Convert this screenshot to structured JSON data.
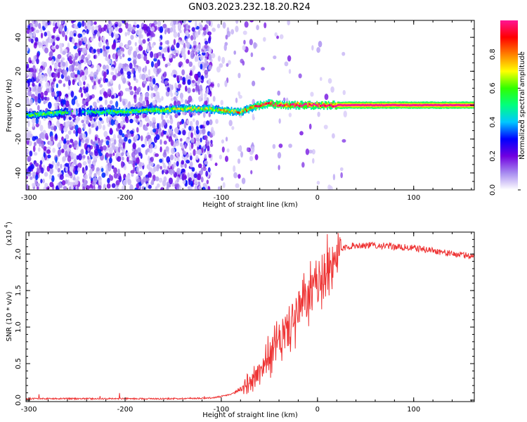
{
  "figure": {
    "title": "GN03.2023.232.18.20.R24"
  },
  "chart_data": [
    {
      "type": "heatmap",
      "title": "",
      "xlabel": "Height of straight line (km)",
      "ylabel": "Frequency (Hz)",
      "xlim": [
        -303,
        163
      ],
      "ylim": [
        -50,
        50
      ],
      "xticks": [
        -300,
        -200,
        -100,
        0,
        100
      ],
      "yticks": [
        -40,
        -20,
        0,
        20,
        40
      ],
      "colorbar": {
        "label": "Normalized spectral amplitude",
        "range": [
          0,
          1
        ],
        "ticks": [
          0.0,
          0.2,
          0.4,
          0.6,
          0.8
        ],
        "colors": [
          "#ffffff",
          "#a78bf0",
          "#7000e0",
          "#0000ff",
          "#00c8ff",
          "#00ff7f",
          "#30ff00",
          "#ffff00",
          "#ff8000",
          "#ff0000",
          "#ff1493"
        ]
      },
      "ridge": {
        "description_x": [
          -303,
          -280,
          -260,
          -240,
          -220,
          -200,
          -180,
          -160,
          -140,
          -120,
          -100,
          -80,
          -70,
          -60,
          -50,
          -40,
          -20,
          0,
          20,
          50,
          100,
          163
        ],
        "frequency": [
          -6,
          -5,
          -4,
          -4,
          -4,
          -4,
          -3,
          -3,
          -2,
          -2,
          -3,
          -4,
          -2,
          0,
          1,
          0,
          0,
          0,
          0,
          0,
          0,
          0
        ],
        "amplitude": [
          0.35,
          0.4,
          0.35,
          0.3,
          0.35,
          0.4,
          0.4,
          0.45,
          0.5,
          0.5,
          0.55,
          0.6,
          0.6,
          0.7,
          0.8,
          0.85,
          0.9,
          0.9,
          0.95,
          0.95,
          0.95,
          0.95
        ]
      },
      "scatter_density": {
        "x_ranges": [
          [
            -303,
            -110,
            0.9
          ],
          [
            -110,
            -60,
            0.15
          ],
          [
            -60,
            30,
            0.05
          ]
        ]
      }
    },
    {
      "type": "line",
      "title": "",
      "xlabel": "Height of straight line (km)",
      "ylabel": "SNR (10 * v/v)",
      "y_multiplier": "(x10",
      "y_multiplier_exp": "4",
      "xlim": [
        -303,
        163
      ],
      "ylim": [
        -0.02,
        2.3
      ],
      "xticks": [
        -300,
        -200,
        -100,
        0,
        100
      ],
      "yticks": [
        0.0,
        0.5,
        1.0,
        1.5,
        2.0
      ],
      "ytick_labels": [
        "0.0",
        "0.5",
        "1.0",
        "1.5",
        "2.0"
      ],
      "color": "#ee3333",
      "series": [
        {
          "x": [
            -303,
            -250,
            -200,
            -150,
            -110,
            -100,
            -90,
            -80,
            -70,
            -60,
            -50,
            -40,
            -30,
            -20,
            -10,
            0,
            10,
            20,
            30,
            40,
            60,
            80,
            100,
            120,
            140,
            163
          ],
          "y": [
            0.02,
            0.02,
            0.02,
            0.02,
            0.03,
            0.05,
            0.08,
            0.15,
            0.25,
            0.4,
            0.6,
            0.8,
            1.0,
            1.2,
            1.4,
            1.6,
            1.8,
            2.0,
            2.1,
            2.12,
            2.12,
            2.1,
            2.08,
            2.05,
            2.0,
            1.97
          ]
        }
      ]
    }
  ]
}
